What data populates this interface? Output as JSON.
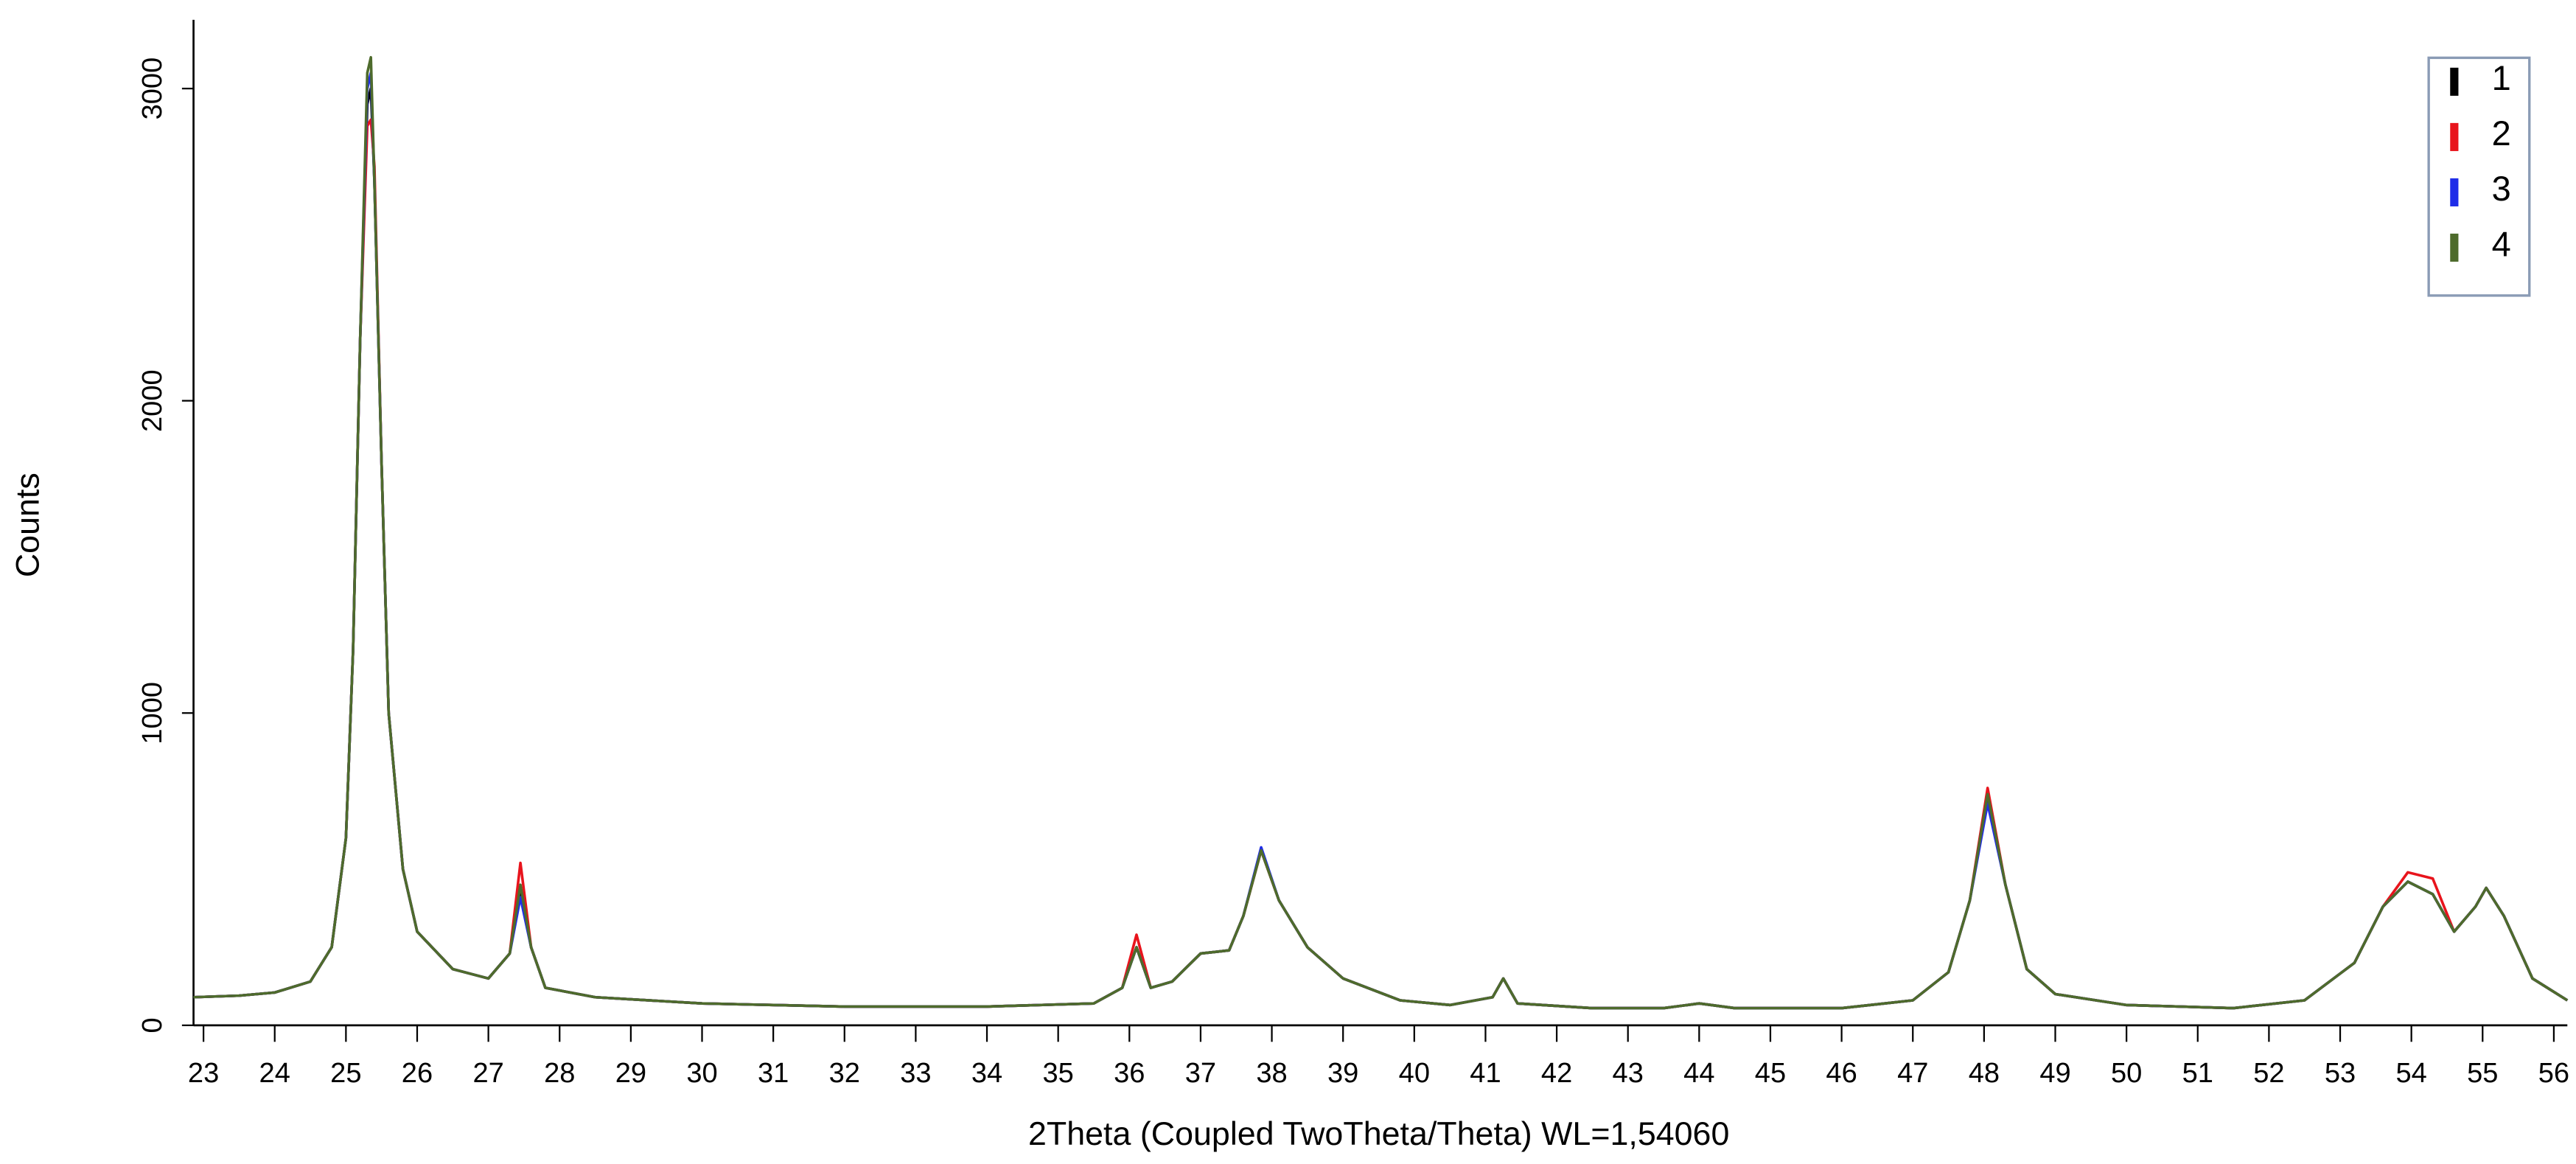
{
  "chart_data": {
    "type": "line",
    "x_label": "2Theta (Coupled TwoTheta/Theta) WL=1,54060",
    "y_label": "Counts",
    "x": [
      22.86,
      23.5,
      24,
      24.5,
      24.8,
      25.0,
      25.1,
      25.2,
      25.3,
      25.35,
      25.4,
      25.5,
      25.6,
      25.8,
      26.0,
      26.5,
      27.0,
      27.3,
      27.45,
      27.6,
      27.8,
      28.5,
      30,
      31,
      32,
      34,
      35.5,
      35.9,
      36.1,
      36.3,
      36.6,
      37.0,
      37.4,
      37.6,
      37.85,
      38.1,
      38.5,
      39,
      39.8,
      40.5,
      41.1,
      41.25,
      41.45,
      42.5,
      43.5,
      44,
      44.5,
      46,
      47,
      47.5,
      47.8,
      48.05,
      48.3,
      48.6,
      49,
      50,
      51.5,
      52.5,
      53.2,
      53.6,
      53.95,
      54.3,
      54.6,
      54.9,
      55.05,
      55.3,
      55.7,
      56.19
    ],
    "series": [
      {
        "name": "1",
        "color": "#000000",
        "values": [
          90,
          95,
          105,
          140,
          250,
          600,
          1200,
          2200,
          2950,
          3000,
          2700,
          1800,
          1000,
          500,
          300,
          180,
          150,
          230,
          430,
          250,
          120,
          90,
          70,
          65,
          60,
          60,
          70,
          120,
          250,
          120,
          140,
          230,
          240,
          350,
          560,
          400,
          250,
          150,
          80,
          65,
          90,
          150,
          70,
          55,
          55,
          70,
          55,
          55,
          80,
          170,
          400,
          730,
          450,
          180,
          100,
          65,
          55,
          80,
          200,
          380,
          460,
          420,
          300,
          380,
          440,
          350,
          150,
          80
        ]
      },
      {
        "name": "2",
        "color": "#e8141c",
        "values": [
          90,
          95,
          105,
          140,
          250,
          600,
          1200,
          2200,
          2880,
          2900,
          2750,
          1800,
          1000,
          500,
          300,
          180,
          150,
          230,
          520,
          250,
          120,
          90,
          70,
          65,
          60,
          60,
          70,
          120,
          290,
          120,
          140,
          230,
          240,
          350,
          560,
          400,
          250,
          150,
          80,
          65,
          90,
          150,
          70,
          55,
          55,
          70,
          55,
          55,
          80,
          170,
          400,
          760,
          450,
          180,
          100,
          65,
          55,
          80,
          200,
          380,
          490,
          470,
          300,
          380,
          440,
          350,
          150,
          80
        ]
      },
      {
        "name": "3",
        "color": "#1f2de8",
        "values": [
          90,
          95,
          105,
          140,
          250,
          600,
          1200,
          2200,
          3000,
          3050,
          2700,
          1800,
          1000,
          500,
          300,
          180,
          150,
          230,
          410,
          250,
          120,
          90,
          70,
          65,
          60,
          60,
          70,
          120,
          250,
          120,
          140,
          230,
          240,
          350,
          570,
          400,
          250,
          150,
          80,
          65,
          90,
          150,
          70,
          55,
          55,
          70,
          55,
          55,
          80,
          170,
          400,
          710,
          450,
          180,
          100,
          65,
          55,
          80,
          200,
          380,
          460,
          420,
          300,
          380,
          440,
          350,
          150,
          80
        ]
      },
      {
        "name": "4",
        "color": "#4e6b2c",
        "values": [
          90,
          95,
          105,
          140,
          250,
          600,
          1200,
          2200,
          3050,
          3100,
          2700,
          1800,
          1000,
          500,
          300,
          180,
          150,
          230,
          450,
          250,
          120,
          90,
          70,
          65,
          60,
          60,
          70,
          120,
          250,
          120,
          140,
          230,
          240,
          350,
          560,
          400,
          250,
          150,
          80,
          65,
          90,
          150,
          70,
          55,
          55,
          70,
          55,
          55,
          80,
          170,
          400,
          740,
          450,
          180,
          100,
          65,
          55,
          80,
          200,
          380,
          460,
          420,
          300,
          380,
          440,
          350,
          150,
          80
        ]
      }
    ],
    "xlim": [
      22.86,
      56.19
    ],
    "ylim": [
      0,
      3220
    ],
    "xticks": [
      23,
      24,
      25,
      26,
      27,
      28,
      29,
      30,
      31,
      32,
      33,
      34,
      35,
      36,
      37,
      38,
      39,
      40,
      41,
      42,
      43,
      44,
      45,
      46,
      47,
      48,
      49,
      50,
      51,
      52,
      53,
      54,
      55,
      56
    ],
    "yticks": [
      0,
      1000,
      2000,
      3000
    ],
    "legend": "upper right"
  }
}
